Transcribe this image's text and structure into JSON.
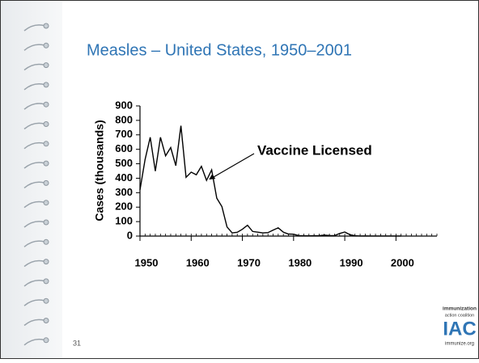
{
  "chart_data": {
    "type": "line",
    "title": "Measles – United States, 1950–2001",
    "y_label": "Cases (thousands)",
    "annotation": "Vaccine Licensed",
    "annotation_x": 1963,
    "x": [
      1950,
      1951,
      1952,
      1953,
      1954,
      1955,
      1956,
      1957,
      1958,
      1959,
      1960,
      1961,
      1962,
      1963,
      1964,
      1965,
      1966,
      1967,
      1968,
      1969,
      1970,
      1971,
      1972,
      1973,
      1974,
      1975,
      1976,
      1977,
      1978,
      1979,
      1980,
      1981,
      1982,
      1983,
      1984,
      1985,
      1986,
      1987,
      1988,
      1989,
      1990,
      1991,
      1992,
      1993,
      1994,
      1995,
      1996,
      1997,
      1998,
      1999,
      2000,
      2001
    ],
    "series": [
      {
        "name": "Cases",
        "color": "#000000",
        "values": [
          319,
          530,
          683,
          449,
          683,
          555,
          612,
          487,
          763,
          406,
          442,
          424,
          482,
          385,
          458,
          262,
          204,
          63,
          22,
          26,
          47,
          75,
          32,
          27,
          22,
          24,
          41,
          57,
          27,
          14,
          13,
          3,
          2,
          1.5,
          2.6,
          2.8,
          6.3,
          3.7,
          3.4,
          18,
          28,
          9.6,
          2.2,
          0.3,
          1,
          0.3,
          0.5,
          0.1,
          0.1,
          0.1,
          0.1,
          0.1
        ]
      }
    ],
    "xlim": [
      1950,
      2008
    ],
    "xticks": [
      1950,
      1960,
      1970,
      1980,
      1990,
      2000
    ],
    "ylim": [
      0,
      900
    ],
    "yticks": [
      0,
      100,
      200,
      300,
      400,
      500,
      600,
      700,
      800,
      900
    ],
    "minor_xticks": true
  },
  "page_number": "31",
  "logo": {
    "line1": "immunization",
    "line2": "action coalition",
    "mark": "IAC",
    "url": "immunize.org"
  }
}
